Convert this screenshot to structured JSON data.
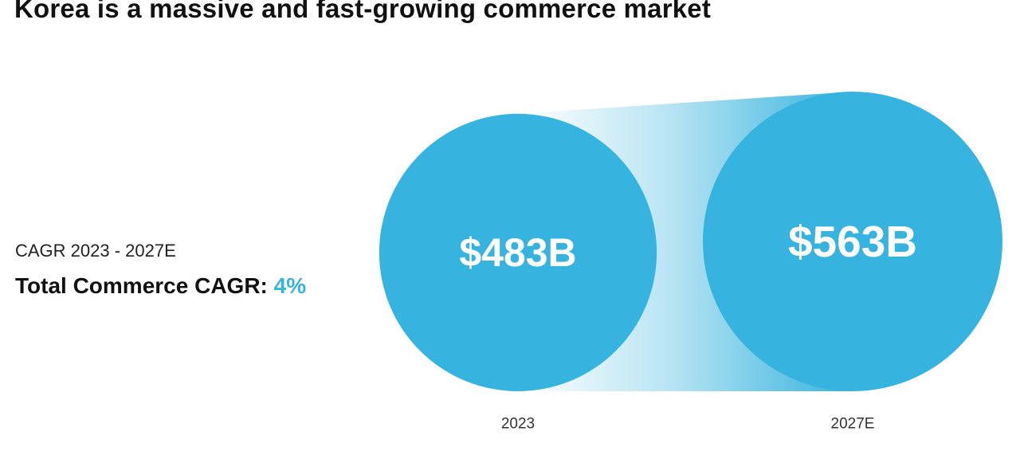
{
  "title": "Korea is a massive and fast-growing commerce market",
  "cagr": {
    "caption": "CAGR 2023 - 2027E",
    "label": "Total Commerce CAGR:",
    "value": "4%"
  },
  "colors": {
    "circle": "#36b3de",
    "accent": "#36b3de",
    "text": "#111111",
    "circle_text": "#ffffff"
  },
  "chart_data": {
    "type": "bubble",
    "categories": [
      "2023",
      "2027E"
    ],
    "values": [
      483,
      563
    ],
    "value_labels": [
      "$483B",
      "$563B"
    ],
    "unit": "USD billions",
    "cagr_percent": 4,
    "title": "Korea is a massive and fast-growing commerce market"
  }
}
